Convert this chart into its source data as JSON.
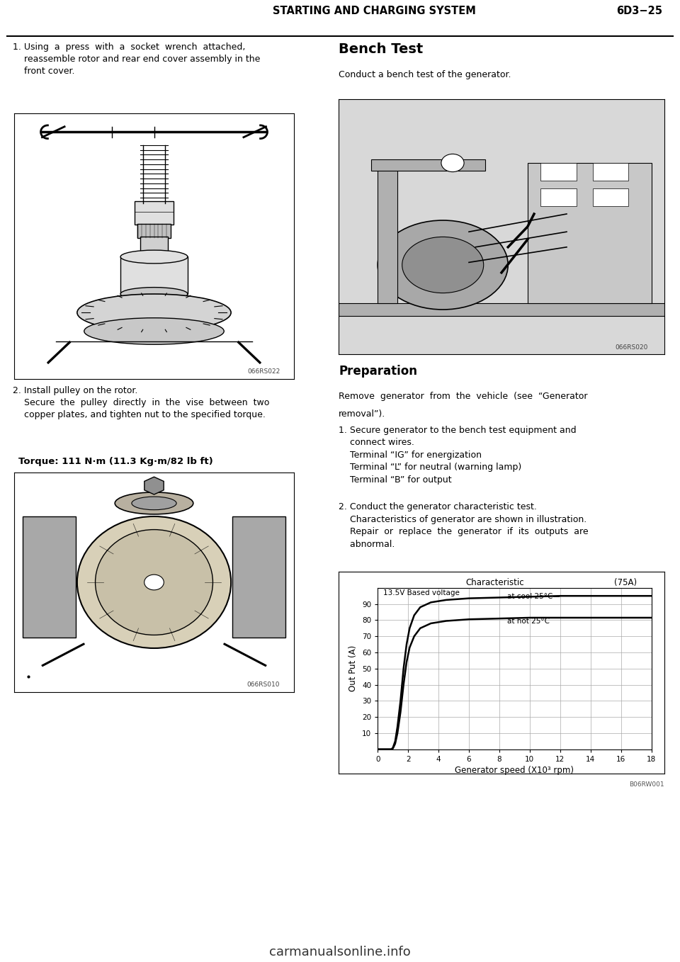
{
  "page_bg": "#ffffff",
  "header_text": "STARTING AND CHARGING SYSTEM",
  "header_right": "6D3−25",
  "step1_text_lines": [
    "1. Using  a  press  with  a  socket  wrench  attached,",
    "    reassemble rotor and rear end cover assembly in the",
    "    front cover."
  ],
  "img1_caption": "066RS022",
  "step2_text_lines": [
    "2. Install pulley on the rotor.",
    "    Secure  the  pulley  directly  in  the  vise  between  two",
    "    copper plates, and tighten nut to the specified torque."
  ],
  "torque_text": "Torque: 111 N·m (11.3 Kg·m/82 lb ft)",
  "img2_caption": "066RS010",
  "bench_title": "Bench Test",
  "bench_intro": "Conduct a bench test of the generator.",
  "img3_caption": "066RS020",
  "prep_title": "Preparation",
  "prep_intro_lines": [
    "Remove  generator  from  the  vehicle  (see  “Generator",
    "removal”)."
  ],
  "step1r_lines": [
    "1. Secure generator to the bench test equipment and",
    "    connect wires.",
    "    Terminal “IG” for energization",
    "    Terminal “L” for neutral (warning lamp)",
    "    Terminal “B” for output"
  ],
  "step2r_lines": [
    "2. Conduct the generator characteristic test.",
    "    Characteristics of generator are shown in illustration.",
    "    Repair  or  replace  the  generator  if  its  outputs  are",
    "    abnormal."
  ],
  "chart_title": "Characteristic",
  "chart_title2": "(75A)",
  "chart_subtitle": "13.5V Based voltage",
  "chart_xlabel": "Generator speed (X10³ rpm)",
  "chart_ylabel": "Out Put (A)",
  "chart_xlim": [
    0,
    18
  ],
  "chart_ylim": [
    0,
    100
  ],
  "chart_xticks": [
    0,
    2,
    4,
    6,
    8,
    10,
    12,
    14,
    16,
    18
  ],
  "chart_yticks": [
    10,
    20,
    30,
    40,
    50,
    60,
    70,
    80,
    90
  ],
  "chart_caption": "B06RW001",
  "label_cool": "at cool 25°C—",
  "label_hot": "at hot 25°C",
  "cool_x": [
    0.0,
    0.9,
    1.0,
    1.15,
    1.3,
    1.5,
    1.7,
    1.9,
    2.1,
    2.4,
    2.8,
    3.5,
    4.5,
    6.0,
    8.0,
    10.0,
    12.0,
    14.0,
    16.0,
    18.0
  ],
  "cool_y": [
    0.0,
    0.0,
    1.0,
    5.0,
    14.0,
    30.0,
    50.0,
    65.0,
    75.0,
    83.0,
    88.0,
    91.0,
    92.5,
    93.5,
    94.0,
    94.5,
    95.0,
    95.0,
    95.0,
    95.0
  ],
  "hot_x": [
    0.0,
    0.9,
    1.0,
    1.15,
    1.3,
    1.5,
    1.7,
    1.9,
    2.1,
    2.4,
    2.8,
    3.5,
    4.5,
    6.0,
    8.0,
    10.0,
    12.0,
    14.0,
    16.0,
    18.0
  ],
  "hot_y": [
    0.0,
    0.0,
    0.5,
    3.5,
    10.0,
    23.0,
    40.0,
    54.0,
    63.0,
    70.0,
    75.0,
    78.0,
    79.5,
    80.5,
    81.0,
    81.5,
    81.5,
    81.5,
    81.5,
    81.5
  ],
  "footer_text": "carmanualsonline.info",
  "font_main": "DejaVu Sans",
  "font_size_body": 9.0,
  "font_size_header": 10.5,
  "font_size_title": 14.0
}
